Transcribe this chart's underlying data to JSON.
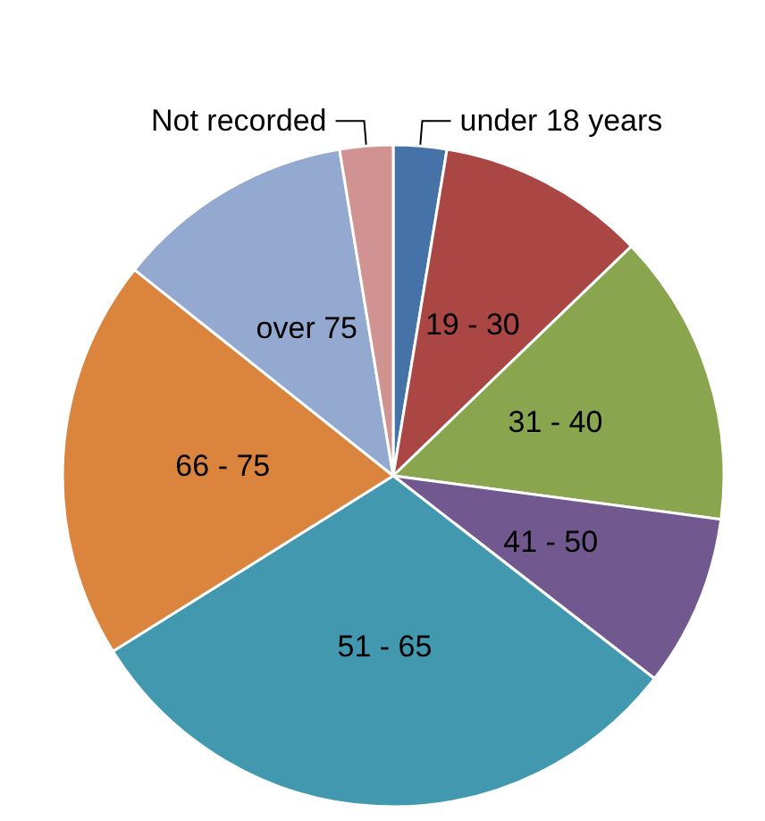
{
  "chart_data": {
    "type": "pie",
    "categories": [
      "under 18 years",
      "19 - 30",
      "31 - 40",
      "41 - 50",
      "51 - 65",
      "66 - 75",
      "over 75",
      "Not recorded"
    ],
    "values": [
      2.6,
      10.2,
      14.3,
      8.4,
      30.6,
      19.6,
      11.7,
      2.6
    ],
    "colors": [
      "#4572a7",
      "#aa4643",
      "#89a54e",
      "#71588f",
      "#4198af",
      "#db843d",
      "#93a9cf",
      "#d19392"
    ],
    "legend": false
  }
}
